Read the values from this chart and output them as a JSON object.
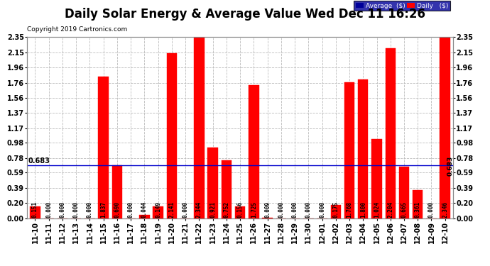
{
  "title": "Daily Solar Energy & Average Value Wed Dec 11 16:26",
  "copyright": "Copyright 2019 Cartronics.com",
  "categories": [
    "11-10",
    "11-11",
    "11-12",
    "11-13",
    "11-14",
    "11-15",
    "11-16",
    "11-17",
    "11-18",
    "11-19",
    "11-20",
    "11-21",
    "11-22",
    "11-23",
    "11-24",
    "11-25",
    "11-26",
    "11-27",
    "11-28",
    "11-29",
    "11-30",
    "12-01",
    "12-02",
    "12-03",
    "12-04",
    "12-05",
    "12-06",
    "12-07",
    "12-08",
    "12-09",
    "12-10"
  ],
  "values": [
    0.151,
    0.0,
    0.0,
    0.0,
    0.0,
    1.837,
    0.69,
    0.0,
    0.044,
    0.149,
    2.141,
    0.0,
    2.344,
    0.921,
    0.752,
    0.156,
    1.725,
    0.009,
    0.0,
    0.0,
    0.0,
    0.0,
    0.175,
    1.768,
    1.8,
    1.024,
    2.204,
    0.665,
    0.361,
    0.0,
    2.346
  ],
  "average_value": 0.683,
  "bar_color": "#ff0000",
  "average_line_color": "#0000cc",
  "background_color": "#ffffff",
  "grid_color": "#bbbbbb",
  "ylim": [
    0.0,
    2.35
  ],
  "yticks": [
    0.0,
    0.2,
    0.39,
    0.59,
    0.78,
    0.98,
    1.17,
    1.37,
    1.56,
    1.76,
    1.96,
    2.15,
    2.35
  ],
  "title_fontsize": 12,
  "tick_fontsize": 7,
  "val_fontsize": 5.5,
  "legend_labels": [
    "Average  ($)",
    "Daily   ($)"
  ],
  "legend_bg_color": "#000099",
  "legend_daily_color": "#ff0000"
}
